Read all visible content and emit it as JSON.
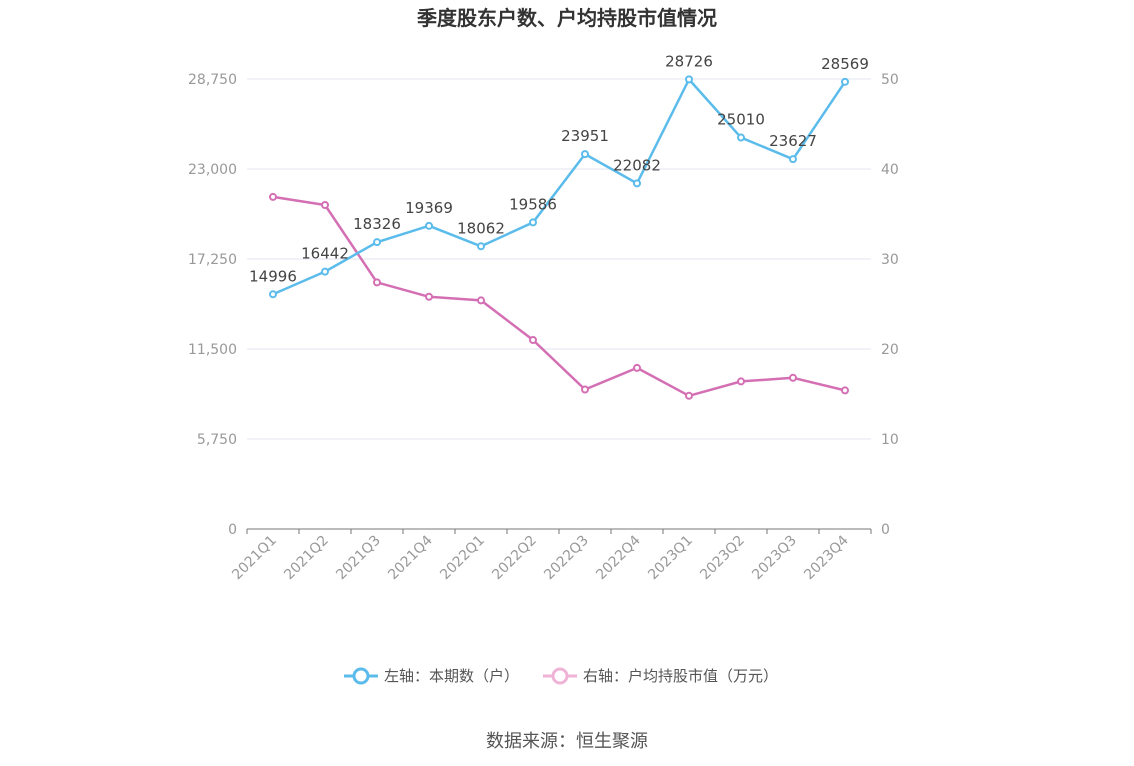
{
  "chart_data": {
    "type": "line",
    "title": "季度股东户数、户均持股市值情况",
    "categories": [
      "2021Q1",
      "2021Q2",
      "2021Q3",
      "2021Q4",
      "2022Q1",
      "2022Q2",
      "2022Q3",
      "2022Q4",
      "2023Q1",
      "2023Q2",
      "2023Q3",
      "2023Q4"
    ],
    "left_axis": {
      "ylim": [
        0,
        28750
      ],
      "ticks": [
        "0",
        "5,750",
        "11,500",
        "17,250",
        "23,000",
        "28,750"
      ],
      "tick_values": [
        0,
        5750,
        11500,
        17250,
        23000,
        28750
      ]
    },
    "right_axis": {
      "ylim": [
        0,
        50
      ],
      "ticks": [
        "0",
        "10",
        "20",
        "30",
        "40",
        "50"
      ],
      "tick_values": [
        0,
        10,
        20,
        30,
        40,
        50
      ]
    },
    "series": [
      {
        "name": "左轴：本期数（户）",
        "axis": "left",
        "color": "#5bbcec",
        "values": [
          14996,
          16442,
          18326,
          19369,
          18062,
          19586,
          23951,
          22082,
          28726,
          25010,
          23627,
          28569
        ],
        "labels": [
          "14996",
          "16442",
          "18326",
          "19369",
          "18062",
          "19586",
          "23951",
          "22082",
          "28726",
          "25010",
          "23627",
          "28569"
        ]
      },
      {
        "name": "右轴：户均持股市值（万元）",
        "axis": "right",
        "color": "#d46fb4",
        "values": [
          36.9,
          36.0,
          27.4,
          25.8,
          25.4,
          21.0,
          15.5,
          17.9,
          14.8,
          16.4,
          16.8,
          15.4
        ]
      }
    ],
    "grid": true,
    "legend_position": "bottom"
  },
  "legend": {
    "left_label": "左轴：本期数（户）",
    "right_label": "右轴：户均持股市值（万元）"
  },
  "source": "数据来源：恒生聚源"
}
